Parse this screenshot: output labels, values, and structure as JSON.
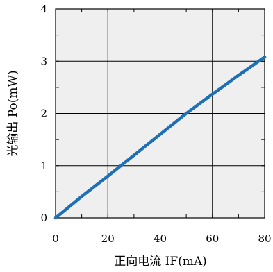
{
  "chart_data": {
    "type": "line",
    "xlabel": "正向电流 IF(mA)",
    "ylabel": "光输出 Po(mW)",
    "xlim": [
      0,
      80
    ],
    "ylim": [
      0,
      4
    ],
    "xticks": [
      "0",
      "20",
      "40",
      "60",
      "80"
    ],
    "yticks": [
      "0",
      "1",
      "2",
      "3",
      "4"
    ],
    "grid": true,
    "series": [
      {
        "color": "#1f6fb5",
        "x": [
          0,
          10,
          20,
          25,
          30,
          40,
          50,
          60,
          70,
          80
        ],
        "y": [
          0,
          0.41,
          0.8,
          1.0,
          1.2,
          1.6,
          2.0,
          2.37,
          2.73,
          3.08
        ]
      }
    ]
  }
}
